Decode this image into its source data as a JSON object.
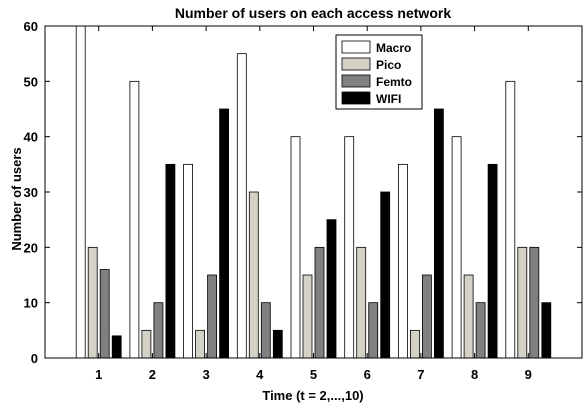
{
  "chart_data": {
    "type": "bar",
    "title": "Number of users on each access network",
    "xlabel": "Time (t = 2,...,10)",
    "ylabel": "Number of users",
    "categories": [
      "1",
      "2",
      "3",
      "4",
      "5",
      "6",
      "7",
      "8",
      "9"
    ],
    "ylim": [
      0,
      60
    ],
    "yticks": [
      0,
      10,
      20,
      30,
      40,
      50,
      60
    ],
    "grid": false,
    "legend_position": "top-right",
    "series": [
      {
        "name": "Macro",
        "color": "#ffffff",
        "values": [
          60,
          50,
          35,
          55,
          40,
          40,
          35,
          40,
          50
        ]
      },
      {
        "name": "Pico",
        "color": "#d4d2c6",
        "values": [
          20,
          5,
          5,
          30,
          15,
          20,
          5,
          15,
          20
        ]
      },
      {
        "name": "Femto",
        "color": "#808080",
        "values": [
          16,
          10,
          15,
          10,
          20,
          10,
          15,
          10,
          20
        ]
      },
      {
        "name": "WIFI",
        "color": "#000000",
        "values": [
          4,
          35,
          45,
          5,
          25,
          30,
          45,
          35,
          10
        ]
      }
    ]
  }
}
